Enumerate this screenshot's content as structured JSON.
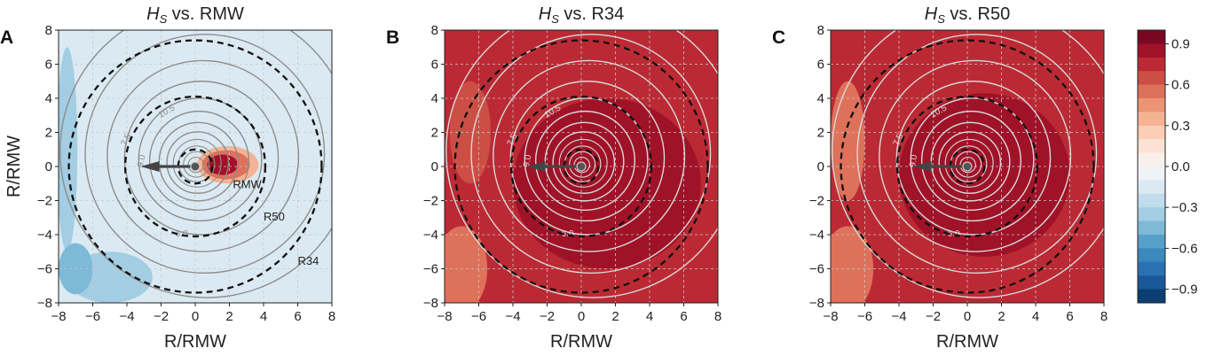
{
  "chart_data": [
    {
      "type": "heatmap",
      "panel_label": "A",
      "title_var": "H",
      "title_sub": "S",
      "title_rest": " vs. RMW",
      "xlabel": "R/RMW",
      "ylabel": "R/RMW",
      "xlim": [
        -8,
        8
      ],
      "ylim": [
        -8,
        8
      ],
      "xticks": [
        -8,
        -6,
        -4,
        -2,
        0,
        2,
        4,
        6,
        8
      ],
      "yticks": [
        -8,
        -6,
        -4,
        -2,
        0,
        2,
        4,
        6,
        8
      ],
      "grid": true,
      "background_value": -0.15,
      "field_blobs": [
        {
          "x": 1.9,
          "y": 0.1,
          "rx": 1.8,
          "ry": 1.1,
          "value": 0.35
        },
        {
          "x": 1.8,
          "y": 0.1,
          "rx": 1.4,
          "ry": 0.85,
          "value": 0.55
        },
        {
          "x": 1.6,
          "y": 0.1,
          "rx": 0.9,
          "ry": 0.6,
          "value": 0.8
        },
        {
          "x": -7.5,
          "y": 1.0,
          "rx": 0.6,
          "ry": 6.0,
          "value": -0.35
        },
        {
          "x": -5.0,
          "y": -6.5,
          "rx": 2.5,
          "ry": 1.5,
          "value": -0.3
        },
        {
          "x": -7.0,
          "y": -6.0,
          "rx": 1.0,
          "ry": 1.5,
          "value": -0.45
        }
      ],
      "reference_circles": [
        {
          "name": "RMW",
          "radius": 1.0
        },
        {
          "name": "R50",
          "radius": 4.1
        },
        {
          "name": "R34",
          "radius": 7.4
        }
      ],
      "circle_labels": [
        {
          "text": "RMW",
          "x": 2.2,
          "y": -1.0
        },
        {
          "text": "R50",
          "x": 4.0,
          "y": -2.9
        },
        {
          "text": "R34",
          "x": 6.0,
          "y": -5.5
        }
      ],
      "contour_labels": [
        "7.5",
        "9.0",
        "10.5",
        "6.0"
      ],
      "contour_color": "#8d8d8d",
      "arrow_direction": "west"
    },
    {
      "type": "heatmap",
      "panel_label": "B",
      "title_var": "H",
      "title_sub": "S",
      "title_rest": " vs. R34",
      "xlabel": "R/RMW",
      "ylabel": "",
      "xlim": [
        -8,
        8
      ],
      "ylim": [
        -8,
        8
      ],
      "xticks": [
        -8,
        -6,
        -4,
        -2,
        0,
        2,
        4,
        6,
        8
      ],
      "yticks": [
        -8,
        -6,
        -4,
        -2,
        0,
        2,
        4,
        6,
        8
      ],
      "grid": true,
      "background_value": 0.72,
      "field_blobs": [
        {
          "x": 1.5,
          "y": -1.0,
          "rx": 5.5,
          "ry": 5.0,
          "value": 0.82
        },
        {
          "x": 2.0,
          "y": -0.5,
          "rx": 3.0,
          "ry": 3.0,
          "value": 0.9
        },
        {
          "x": -7.0,
          "y": -6.0,
          "rx": 1.5,
          "ry": 2.5,
          "value": 0.55
        },
        {
          "x": -6.5,
          "y": 2.0,
          "rx": 1.2,
          "ry": 3.0,
          "value": 0.6
        }
      ],
      "reference_circles": [
        {
          "name": "RMW",
          "radius": 1.0
        },
        {
          "name": "R50",
          "radius": 4.1
        },
        {
          "name": "R34",
          "radius": 7.4
        }
      ],
      "circle_labels": [],
      "contour_labels": [
        "7.5",
        "9.0",
        "10.5",
        "6.0"
      ],
      "contour_color": "#d9d9d9",
      "arrow_direction": "west"
    },
    {
      "type": "heatmap",
      "panel_label": "C",
      "title_var": "H",
      "title_sub": "S",
      "title_rest": " vs. R50",
      "xlabel": "R/RMW",
      "ylabel": "",
      "xlim": [
        -8,
        8
      ],
      "ylim": [
        -8,
        8
      ],
      "xticks": [
        -8,
        -6,
        -4,
        -2,
        0,
        2,
        4,
        6,
        8
      ],
      "yticks": [
        -8,
        -6,
        -4,
        -2,
        0,
        2,
        4,
        6,
        8
      ],
      "grid": true,
      "background_value": 0.72,
      "field_blobs": [
        {
          "x": 1.0,
          "y": -0.5,
          "rx": 5.0,
          "ry": 4.8,
          "value": 0.82
        },
        {
          "x": 1.5,
          "y": -0.5,
          "rx": 2.6,
          "ry": 2.6,
          "value": 0.9
        },
        {
          "x": -7.0,
          "y": -6.0,
          "rx": 1.5,
          "ry": 2.5,
          "value": 0.5
        },
        {
          "x": -7.0,
          "y": 1.5,
          "rx": 1.0,
          "ry": 3.5,
          "value": 0.55
        }
      ],
      "reference_circles": [
        {
          "name": "RMW",
          "radius": 1.0
        },
        {
          "name": "R50",
          "radius": 4.1
        },
        {
          "name": "R34",
          "radius": 7.4
        }
      ],
      "circle_labels": [],
      "contour_labels": [
        "7.5",
        "9.0",
        "10.5",
        "6.0"
      ],
      "contour_color": "#d9d9d9",
      "arrow_direction": "west"
    }
  ],
  "colorbar": {
    "min": -1.0,
    "max": 1.0,
    "levels": 20,
    "tick_values": [
      0.9,
      0.6,
      0.3,
      0.0,
      -0.3,
      -0.6,
      -0.9
    ],
    "tick_labels": [
      "0.9",
      "0.6",
      "0.3",
      "0.0",
      "−0.3",
      "−0.6",
      "−0.9"
    ],
    "colormap": [
      "#053061",
      "#2166ac",
      "#4393c3",
      "#92c5de",
      "#d1e5f0",
      "#f7f7f7",
      "#fddbc7",
      "#f4a582",
      "#d6604d",
      "#b2182b",
      "#67001f"
    ]
  }
}
